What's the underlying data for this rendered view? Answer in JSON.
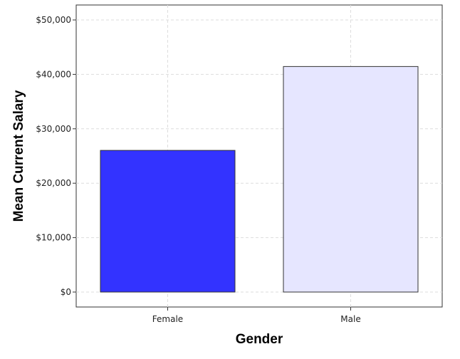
{
  "chart_data": {
    "type": "bar",
    "title": "",
    "xlabel": "Gender",
    "ylabel": "Mean Current Salary",
    "categories": [
      "Female",
      "Male"
    ],
    "values": [
      26032,
      41442
    ],
    "ylim": [
      0,
      50000
    ],
    "yticks": [
      0,
      10000,
      20000,
      30000,
      40000,
      50000
    ],
    "ytick_labels": [
      "$0",
      "$10,000",
      "$20,000",
      "$30,000",
      "$40,000",
      "$50,000"
    ],
    "grid": true,
    "legend": "none",
    "bar_colors": [
      "#3333ff",
      "#e6e6ff"
    ],
    "bar_edge_color": "#333333",
    "grid_color": "#dddddd"
  }
}
